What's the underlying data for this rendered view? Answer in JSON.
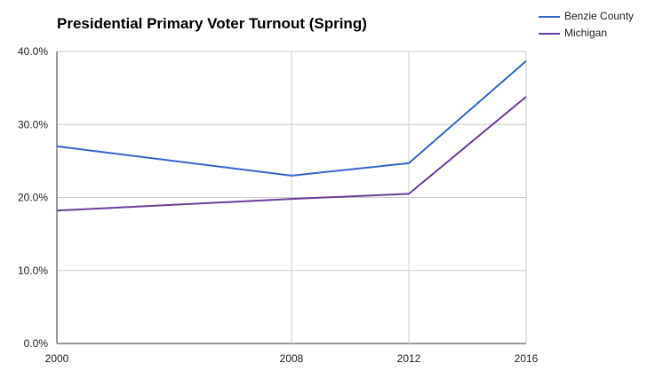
{
  "chart_data": {
    "type": "line",
    "title": "Presidential Primary Voter Turnout (Spring)",
    "xlabel": "",
    "ylabel": "",
    "x": [
      "2000",
      "2008",
      "2012",
      "2016"
    ],
    "x_values": [
      2000,
      2008,
      2012,
      2016
    ],
    "xlim": [
      2000,
      2016
    ],
    "ylim": [
      0,
      40
    ],
    "yticks": [
      "0.0%",
      "10.0%",
      "20.0%",
      "30.0%",
      "40.0%"
    ],
    "ytick_values": [
      0,
      10,
      20,
      30,
      40
    ],
    "grid": true,
    "legend_position": "top-right",
    "series": [
      {
        "name": "Benzie County",
        "color": "#3366cc",
        "values": [
          27.0,
          23.0,
          24.7,
          38.7
        ]
      },
      {
        "name": "Michigan",
        "color": "#6a3d9a",
        "values": [
          18.2,
          19.8,
          20.5,
          33.8
        ]
      }
    ]
  }
}
